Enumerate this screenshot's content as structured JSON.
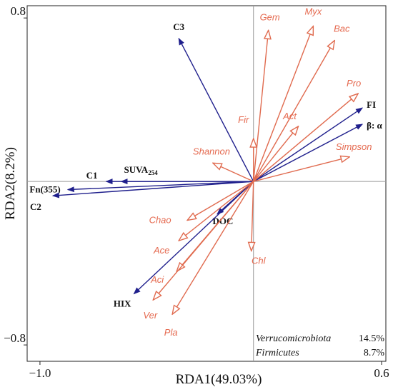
{
  "chart_data": {
    "type": "scatter",
    "subtype": "rda-biplot",
    "xlabel": "RDA1(49.03%)",
    "ylabel": "RDA2(8.2%)",
    "xlim": [
      -1.06,
      0.62
    ],
    "ylim": [
      -0.88,
      0.86
    ],
    "x_ticks": [
      {
        "value": -1.0,
        "label": "−1.0"
      },
      {
        "value": 0.6,
        "label": "0.6"
      }
    ],
    "y_ticks": [
      {
        "value": 0.8,
        "label": "0.8"
      },
      {
        "value": -0.8,
        "label": "−0.8"
      }
    ],
    "reference_lines": {
      "x": 0,
      "y": 0
    },
    "env_color": "#1f1f8c",
    "species_color": "#e06a4e",
    "environmental_vectors": [
      {
        "name": "C3",
        "x": -0.35,
        "y": 0.7
      },
      {
        "name": "FI",
        "x": 0.51,
        "y": 0.36
      },
      {
        "name": "β: α",
        "x": 0.51,
        "y": 0.28
      },
      {
        "name": "SUVA254",
        "name_main": "SUVA",
        "name_sub": "254",
        "x": -0.62,
        "y": 0.0
      },
      {
        "name": "C1",
        "x": -0.69,
        "y": 0.0
      },
      {
        "name": "Fn(355)",
        "x": -0.87,
        "y": -0.04
      },
      {
        "name": "C2",
        "x": -0.94,
        "y": -0.07
      },
      {
        "name": "DOC",
        "x": -0.17,
        "y": -0.16
      },
      {
        "name": "HIX",
        "x": -0.56,
        "y": -0.55
      }
    ],
    "species_vectors": [
      {
        "name": "Gem",
        "x": 0.07,
        "y": 0.74
      },
      {
        "name": "Myx",
        "x": 0.28,
        "y": 0.76
      },
      {
        "name": "Bac",
        "x": 0.38,
        "y": 0.69
      },
      {
        "name": "Pro",
        "x": 0.49,
        "y": 0.43
      },
      {
        "name": "Act",
        "x": 0.21,
        "y": 0.27
      },
      {
        "name": "Simpson",
        "x": 0.45,
        "y": 0.12
      },
      {
        "name": "Fir",
        "x": 0.0,
        "y": 0.21
      },
      {
        "name": "Shannon",
        "x": -0.19,
        "y": 0.09
      },
      {
        "name": "Chao",
        "x": -0.31,
        "y": -0.19
      },
      {
        "name": "Ace",
        "x": -0.35,
        "y": -0.29
      },
      {
        "name": "Chl",
        "x": -0.01,
        "y": -0.34
      },
      {
        "name": "Aci",
        "x": -0.36,
        "y": -0.44
      },
      {
        "name": "Ver",
        "x": -0.47,
        "y": -0.58
      },
      {
        "name": "Pla",
        "x": -0.38,
        "y": -0.65
      }
    ],
    "annotations": [
      {
        "taxon": "Verrucomicrobiota",
        "value": "14.5%"
      },
      {
        "taxon": "Firmicutes",
        "value": "8.7%"
      }
    ]
  }
}
